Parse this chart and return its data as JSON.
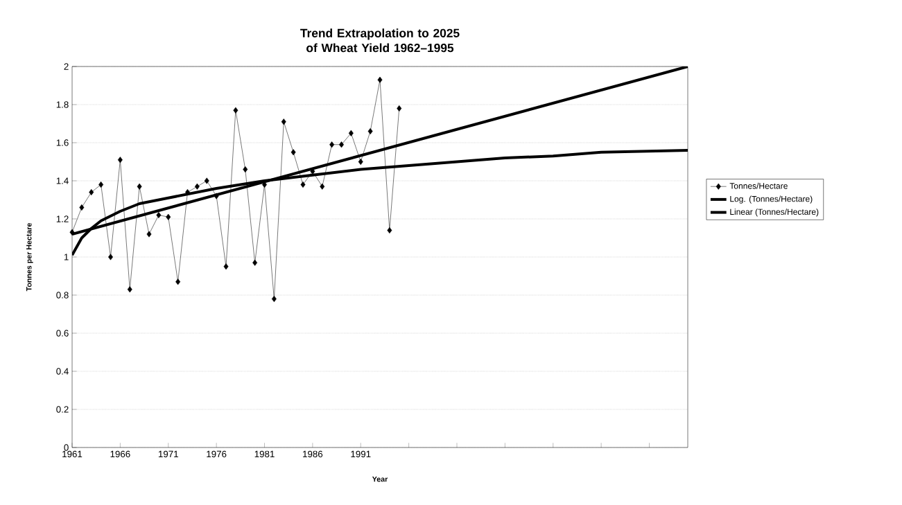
{
  "chart_data": {
    "type": "line",
    "title": "Trend Extrapolation to 2025 of Wheat Yield 1962–1995",
    "xlabel": "Year",
    "ylabel": "Tonnes per Hectare",
    "xlim": [
      1961,
      2025
    ],
    "ylim": [
      0,
      2
    ],
    "xticks": [
      1961,
      1966,
      1971,
      1976,
      1981,
      1986,
      1991,
      {
        "value": 1996,
        "label": null
      },
      {
        "value": 2001,
        "label": null
      },
      {
        "value": 2006,
        "label": null
      },
      {
        "value": 2011,
        "label": null
      },
      {
        "value": 2016,
        "label": null
      },
      {
        "value": 2021,
        "label": null
      }
    ],
    "yticks": [
      0,
      0.2,
      0.4,
      0.6,
      0.8,
      1,
      1.2,
      1.4,
      1.6,
      1.8,
      2
    ],
    "grid": "y",
    "legend": "right",
    "series": [
      {
        "name": "Tonnes/Hectare",
        "color": "#000000",
        "marker": "diamond",
        "x": [
          1961,
          1962,
          1963,
          1964,
          1965,
          1966,
          1967,
          1968,
          1969,
          1970,
          1971,
          1972,
          1973,
          1974,
          1975,
          1976,
          1977,
          1978,
          1979,
          1980,
          1981,
          1982,
          1983,
          1984,
          1985,
          1986,
          1987,
          1988,
          1989,
          1990,
          1991,
          1992,
          1993,
          1994,
          1995
        ],
        "values": [
          1.13,
          1.26,
          1.34,
          1.38,
          1.0,
          1.51,
          0.83,
          1.37,
          1.12,
          1.22,
          1.21,
          0.87,
          1.34,
          1.37,
          1.4,
          1.32,
          0.95,
          1.77,
          1.46,
          0.97,
          1.38,
          0.78,
          1.71,
          1.55,
          1.38,
          1.45,
          1.37,
          1.59,
          1.59,
          1.65,
          1.5,
          1.66,
          1.93,
          1.14,
          1.78
        ]
      },
      {
        "name": "Log. (Tonnes/Hectare)",
        "color": "#000000",
        "marker": "none",
        "x": [
          1961,
          1962,
          1963,
          1964,
          1966,
          1968,
          1971,
          1976,
          1981,
          1986,
          1991,
          1996,
          2001,
          2006,
          2011,
          2016,
          2025
        ],
        "values": [
          1.01,
          1.1,
          1.15,
          1.19,
          1.24,
          1.28,
          1.31,
          1.36,
          1.4,
          1.43,
          1.46,
          1.48,
          1.5,
          1.52,
          1.53,
          1.55,
          1.56
        ]
      },
      {
        "name": "Linear (Tonnes/Hectare)",
        "color": "#000000",
        "marker": "none",
        "x": [
          1961,
          2025
        ],
        "values": [
          1.12,
          2.0
        ]
      }
    ]
  }
}
